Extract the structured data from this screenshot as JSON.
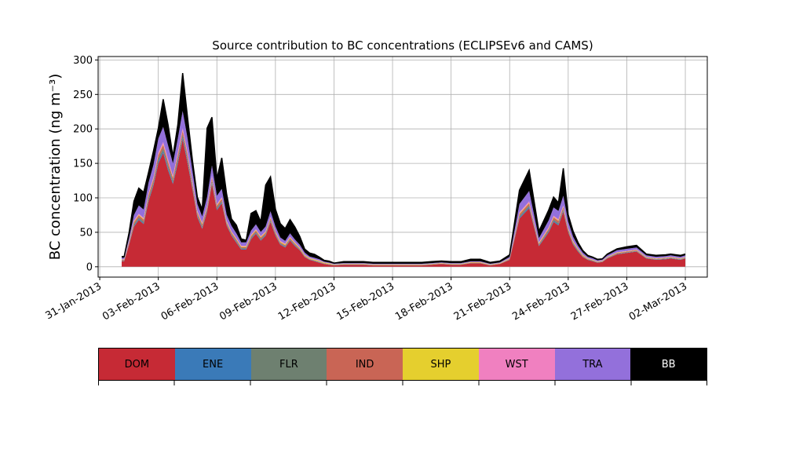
{
  "chart_data": {
    "type": "area",
    "title": "Source contribution to BC concentrations (ECLIPSEv6 and CAMS)",
    "ylabel": "BC concentration (ng m⁻³)",
    "xlabel": "",
    "ylim": [
      -15,
      305
    ],
    "xlim": [
      "2013-01-30T22:00",
      "2013-03-03T03:00"
    ],
    "yticks": [
      0,
      50,
      100,
      150,
      200,
      250,
      300
    ],
    "xticks": [
      "31-Jan-2013",
      "03-Feb-2013",
      "06-Feb-2013",
      "09-Feb-2013",
      "12-Feb-2013",
      "15-Feb-2013",
      "18-Feb-2013",
      "21-Feb-2013",
      "24-Feb-2013",
      "27-Feb-2013",
      "02-Mar-2013"
    ],
    "xtick_dates": [
      "2013-01-31",
      "2013-02-03",
      "2013-02-06",
      "2013-02-09",
      "2013-02-12",
      "2013-02-15",
      "2013-02-18",
      "2013-02-21",
      "2013-02-24",
      "2013-02-27",
      "2013-03-02"
    ],
    "grid": true,
    "x": [
      "2013-02-01T03:00",
      "2013-02-01T06:00",
      "2013-02-01T12:00",
      "2013-02-01T18:00",
      "2013-02-02T00:00",
      "2013-02-02T06:00",
      "2013-02-02T12:00",
      "2013-02-02T18:00",
      "2013-02-03T00:00",
      "2013-02-03T06:00",
      "2013-02-03T12:00",
      "2013-02-03T18:00",
      "2013-02-04T00:00",
      "2013-02-04T06:00",
      "2013-02-04T12:00",
      "2013-02-04T18:00",
      "2013-02-05T00:00",
      "2013-02-05T06:00",
      "2013-02-05T12:00",
      "2013-02-05T18:00",
      "2013-02-06T00:00",
      "2013-02-06T06:00",
      "2013-02-06T12:00",
      "2013-02-06T18:00",
      "2013-02-07T00:00",
      "2013-02-07T06:00",
      "2013-02-07T12:00",
      "2013-02-07T18:00",
      "2013-02-08T00:00",
      "2013-02-08T06:00",
      "2013-02-08T12:00",
      "2013-02-08T18:00",
      "2013-02-09T00:00",
      "2013-02-09T06:00",
      "2013-02-09T12:00",
      "2013-02-09T18:00",
      "2013-02-10T00:00",
      "2013-02-10T06:00",
      "2013-02-10T12:00",
      "2013-02-10T18:00",
      "2013-02-11T00:00",
      "2013-02-11T06:00",
      "2013-02-11T12:00",
      "2013-02-11T18:00",
      "2013-02-12T00:00",
      "2013-02-12T12:00",
      "2013-02-13T00:00",
      "2013-02-13T12:00",
      "2013-02-14T00:00",
      "2013-02-14T12:00",
      "2013-02-15T00:00",
      "2013-02-15T12:00",
      "2013-02-16T00:00",
      "2013-02-16T12:00",
      "2013-02-17T00:00",
      "2013-02-17T12:00",
      "2013-02-18T00:00",
      "2013-02-18T12:00",
      "2013-02-19T00:00",
      "2013-02-19T12:00",
      "2013-02-20T00:00",
      "2013-02-20T12:00",
      "2013-02-21T00:00",
      "2013-02-21T12:00",
      "2013-02-22T00:00",
      "2013-02-22T12:00",
      "2013-02-23T00:00",
      "2013-02-23T06:00",
      "2013-02-23T12:00",
      "2013-02-23T18:00",
      "2013-02-24T00:00",
      "2013-02-24T06:00",
      "2013-02-24T12:00",
      "2013-02-24T18:00",
      "2013-02-25T00:00",
      "2013-02-25T06:00",
      "2013-02-25T12:00",
      "2013-02-25T18:00",
      "2013-02-26T00:00",
      "2013-02-26T12:00",
      "2013-02-27T00:00",
      "2013-02-27T12:00",
      "2013-02-28T00:00",
      "2013-02-28T12:00",
      "2013-03-01T00:00",
      "2013-03-01T06:00",
      "2013-03-01T12:00",
      "2013-03-01T18:00",
      "2013-03-02T00:00"
    ],
    "series": [
      {
        "name": "DOM",
        "color": "#c62a35",
        "values": [
          8,
          8,
          32,
          58,
          68,
          62,
          95,
          118,
          150,
          165,
          140,
          120,
          150,
          185,
          150,
          112,
          72,
          55,
          80,
          120,
          82,
          92,
          60,
          45,
          35,
          25,
          25,
          40,
          48,
          38,
          45,
          65,
          45,
          32,
          28,
          38,
          30,
          24,
          14,
          10,
          8,
          6,
          4,
          3,
          2,
          3,
          3,
          3,
          2,
          2,
          2,
          2,
          2,
          2,
          3,
          4,
          3,
          3,
          5,
          5,
          2,
          4,
          10,
          70,
          85,
          30,
          50,
          65,
          60,
          80,
          50,
          32,
          22,
          14,
          10,
          8,
          6,
          7,
          12,
          18,
          20,
          22,
          12,
          10,
          11,
          12,
          11,
          10,
          12
        ]
      },
      {
        "name": "ENE",
        "color": "#3a7ab8",
        "values": [
          0.5,
          0.5,
          1,
          1.5,
          1.5,
          1.5,
          2,
          2,
          3,
          3,
          3,
          2,
          3,
          3,
          3,
          2,
          1.5,
          1.5,
          1.5,
          2,
          1.5,
          1.5,
          1,
          1,
          1,
          1,
          1,
          1,
          1,
          1,
          1,
          1,
          1,
          1,
          1,
          1,
          1,
          0.5,
          0.5,
          0.5,
          0.5,
          0.5,
          0.3,
          0.3,
          0.2,
          0.2,
          0.2,
          0.2,
          0.2,
          0.2,
          0.2,
          0.2,
          0.2,
          0.2,
          0.2,
          0.2,
          0.2,
          0.2,
          0.3,
          0.3,
          0.2,
          0.2,
          0.5,
          1.5,
          2,
          1,
          1.5,
          1.5,
          1.5,
          1.5,
          1,
          1,
          1,
          0.5,
          0.5,
          0.5,
          0.3,
          0.3,
          0.5,
          0.5,
          0.5,
          0.5,
          0.5,
          0.5,
          0.5,
          0.5,
          0.5,
          0.5,
          0.5
        ]
      },
      {
        "name": "FLR",
        "color": "#6e8070",
        "values": [
          0.5,
          0.5,
          1,
          2,
          2,
          2,
          3,
          3,
          4,
          4,
          4,
          3,
          4,
          4,
          4,
          3,
          2,
          2,
          2,
          3,
          2,
          2,
          1.5,
          1.5,
          1.5,
          1,
          1,
          1.5,
          1.5,
          1.5,
          1.5,
          2,
          1.5,
          1,
          1,
          1,
          1,
          1,
          0.5,
          0.5,
          0.5,
          0.5,
          0.3,
          0.3,
          0.2,
          0.2,
          0.2,
          0.2,
          0.2,
          0.2,
          0.2,
          0.2,
          0.2,
          0.2,
          0.2,
          0.2,
          0.2,
          0.2,
          0.3,
          0.3,
          0.2,
          0.2,
          0.5,
          2,
          2,
          1,
          1.5,
          2,
          2,
          2,
          1.5,
          1,
          1,
          0.5,
          0.5,
          0.5,
          0.3,
          0.3,
          0.5,
          0.5,
          0.5,
          0.5,
          0.5,
          0.5,
          0.5,
          0.5,
          0.5,
          0.5,
          0.5
        ]
      },
      {
        "name": "IND",
        "color": "#c96555",
        "values": [
          1,
          1,
          2,
          3,
          3,
          3,
          4,
          4,
          5,
          5,
          5,
          4,
          5,
          5,
          5,
          4,
          3,
          3,
          3,
          4,
          3,
          3,
          2,
          2,
          2,
          1.5,
          1.5,
          2,
          2,
          2,
          2,
          2.5,
          2,
          1.5,
          1.5,
          1.5,
          1.5,
          1,
          1,
          0.5,
          0.5,
          0.5,
          0.5,
          0.3,
          0.3,
          0.3,
          0.3,
          0.3,
          0.3,
          0.3,
          0.3,
          0.3,
          0.3,
          0.3,
          0.3,
          0.3,
          0.3,
          0.3,
          0.5,
          0.5,
          0.3,
          0.3,
          0.5,
          3,
          3,
          1.5,
          2,
          3,
          3,
          3,
          2,
          1.5,
          1,
          1,
          0.5,
          0.5,
          0.5,
          0.5,
          0.5,
          1,
          1,
          1,
          0.5,
          0.5,
          0.5,
          0.5,
          0.5,
          0.5,
          0.5
        ]
      },
      {
        "name": "SHP",
        "color": "#e5cf2e",
        "values": [
          0.5,
          0.5,
          0.5,
          1,
          1,
          1,
          1,
          1,
          1,
          1,
          1,
          1,
          1,
          1,
          1,
          1,
          1,
          1,
          1,
          1,
          1,
          1,
          1,
          1,
          1,
          1,
          1,
          1,
          1,
          1,
          1,
          1,
          1,
          1,
          1,
          1,
          1,
          1,
          1,
          1,
          1,
          1,
          1,
          1,
          0.5,
          0.5,
          0.5,
          0.5,
          0.5,
          0.5,
          0.5,
          0.5,
          0.5,
          0.5,
          0.5,
          0.5,
          0.5,
          0.5,
          0.5,
          0.5,
          0.5,
          0.5,
          0.5,
          1,
          1,
          1,
          1,
          1,
          1,
          1,
          1,
          1,
          1,
          1,
          0.5,
          0.5,
          0.5,
          0.5,
          0.5,
          0.5,
          0.5,
          0.5,
          0.5,
          0.5,
          0.5,
          0.5,
          0.5,
          0.5,
          0.5
        ]
      },
      {
        "name": "WST",
        "color": "#f080c0",
        "values": [
          0.5,
          0.5,
          1,
          1.5,
          1.5,
          1.5,
          2,
          2,
          3,
          3,
          3,
          2,
          3,
          3,
          3,
          2,
          1.5,
          1.5,
          1.5,
          2,
          1.5,
          1.5,
          1,
          1,
          1,
          1,
          1,
          1,
          1,
          1,
          1,
          1,
          1,
          1,
          1,
          1,
          1,
          0.5,
          0.5,
          0.5,
          0.5,
          0.5,
          0.3,
          0.3,
          0.2,
          0.2,
          0.2,
          0.2,
          0.2,
          0.2,
          0.2,
          0.2,
          0.2,
          0.2,
          0.2,
          0.2,
          0.2,
          0.2,
          0.3,
          0.3,
          0.2,
          0.2,
          0.3,
          1.5,
          2,
          1,
          1.5,
          1.5,
          1.5,
          1.5,
          1,
          1,
          0.5,
          0.5,
          0.5,
          0.5,
          0.3,
          0.3,
          0.5,
          0.5,
          0.5,
          0.5,
          0.5,
          0.5,
          0.5,
          0.5,
          0.5,
          0.5,
          0.5
        ]
      },
      {
        "name": "TRA",
        "color": "#9370db",
        "values": [
          2,
          2,
          4,
          8,
          12,
          12,
          15,
          18,
          20,
          22,
          20,
          18,
          20,
          25,
          20,
          15,
          10,
          9,
          12,
          15,
          12,
          12,
          9,
          8,
          7,
          5,
          5,
          6,
          7,
          6,
          7,
          8,
          7,
          5,
          4,
          5,
          4,
          4,
          3,
          2,
          2,
          2,
          1,
          1,
          1,
          1,
          1,
          1,
          1,
          1,
          1,
          1,
          1,
          1,
          1,
          1,
          1,
          1,
          1,
          1,
          1,
          1,
          2,
          12,
          15,
          6,
          10,
          12,
          12,
          14,
          9,
          6,
          4,
          3,
          2,
          2,
          1.5,
          1.5,
          2,
          3,
          3,
          3,
          2,
          2,
          2,
          2,
          2,
          2,
          2
        ]
      },
      {
        "name": "BB",
        "color": "#000000",
        "values": [
          2,
          2,
          8,
          20,
          25,
          25,
          15,
          20,
          15,
          40,
          30,
          10,
          20,
          55,
          30,
          15,
          10,
          10,
          100,
          70,
          25,
          45,
          30,
          10,
          12,
          5,
          3,
          25,
          20,
          15,
          60,
          50,
          25,
          20,
          18,
          20,
          18,
          12,
          5,
          5,
          5,
          3,
          2,
          2,
          1,
          2,
          2,
          2,
          2,
          2,
          2,
          2,
          2,
          2,
          2,
          2,
          2,
          2,
          3,
          3,
          2,
          2,
          3,
          20,
          30,
          10,
          15,
          15,
          12,
          40,
          10,
          8,
          5,
          3,
          2,
          1.5,
          1.5,
          1,
          2,
          2,
          3,
          3,
          2,
          2,
          2,
          2,
          2,
          2,
          2
        ]
      }
    ],
    "legend_position": "bottom"
  }
}
